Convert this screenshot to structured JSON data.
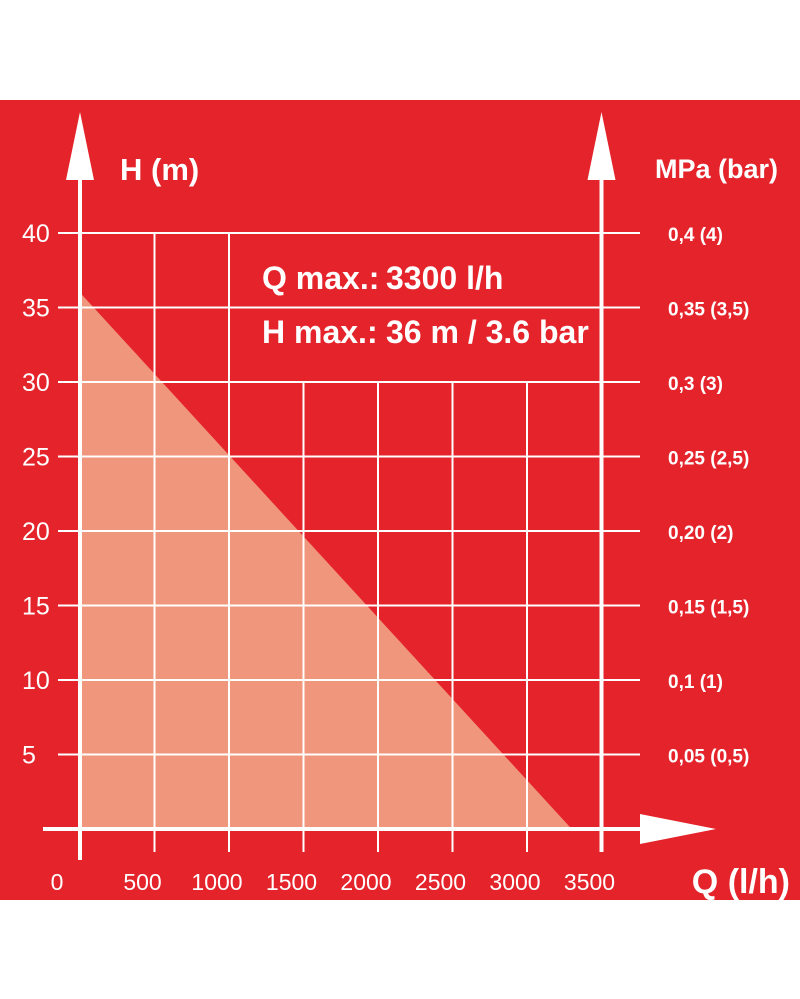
{
  "chart_data": {
    "type": "area",
    "colors": {
      "background": "#e4232b",
      "fill": "#f1a183",
      "lines": "#ffffff"
    },
    "left_axis_label": "H (m)",
    "right_axis_label": "MPa (bar)",
    "x_axis_label": "Q (l/h)",
    "x_ticks": [
      "0",
      "500",
      "1000",
      "1500",
      "2000",
      "2500",
      "3000",
      "3500"
    ],
    "y_ticks": [
      "5",
      "10",
      "15",
      "20",
      "25",
      "30",
      "35",
      "40"
    ],
    "right_ticks": [
      "0,05 (0,5)",
      "0,1 (1)",
      "0,15 (1,5)",
      "0,20 (2)",
      "0,25 (2,5)",
      "0,3 (3)",
      "0,35 (3,5)",
      "0,4 (4)"
    ],
    "xlim": [
      0,
      3500
    ],
    "ylim": [
      0,
      40
    ],
    "grid": true,
    "series": [
      {
        "x": [
          0,
          3300
        ],
        "y": [
          36,
          0
        ]
      }
    ],
    "info": [
      {
        "label": "Q max.:",
        "value": "3300 l/h"
      },
      {
        "label": "H max.:",
        "value": "36 m / 3.6 bar"
      }
    ]
  }
}
